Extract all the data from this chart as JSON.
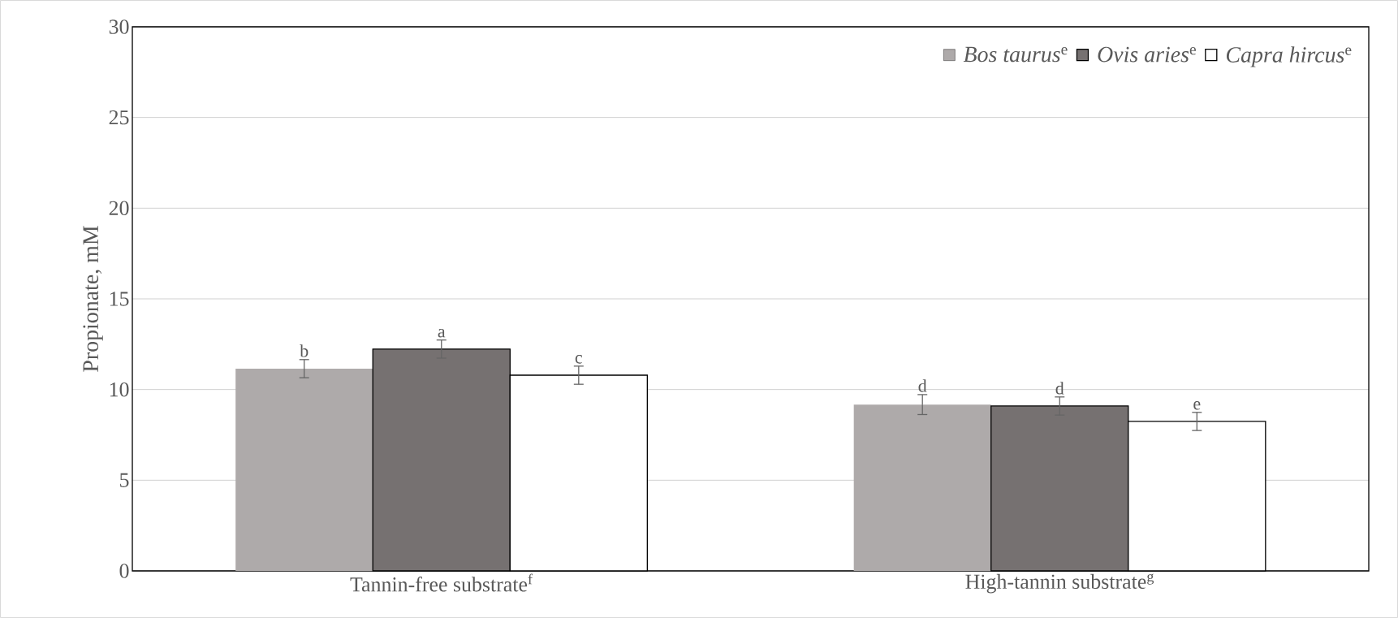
{
  "chart_data": {
    "type": "bar",
    "ylabel": "Propionate, mM",
    "categories": [
      "Tannin-free substrate$^{f}$",
      "High-tannin substrate$^{g}$"
    ],
    "series": [
      {
        "name": "*Bos taurus*$^{e}$",
        "color": "#aeaaaa",
        "values": [
          11.15,
          9.17
        ],
        "errors": [
          0.5,
          0.55
        ]
      },
      {
        "name": "*Ovis aries*$^{e}$",
        "color": "#767171",
        "values": [
          12.23,
          9.09
        ],
        "errors": [
          0.5,
          0.5
        ]
      },
      {
        "name": "*Capra hircus*$^{e}$",
        "color": "#ffffff",
        "values": [
          10.79,
          8.24
        ],
        "errors": [
          0.5,
          0.5
        ]
      }
    ],
    "annotations": [
      "b",
      "a",
      "c",
      "d",
      "d",
      "e"
    ],
    "ylim": [
      0,
      30
    ],
    "yticks": [
      0,
      5,
      10,
      15,
      20,
      25,
      30
    ],
    "grid": "y",
    "legend": "top right"
  }
}
